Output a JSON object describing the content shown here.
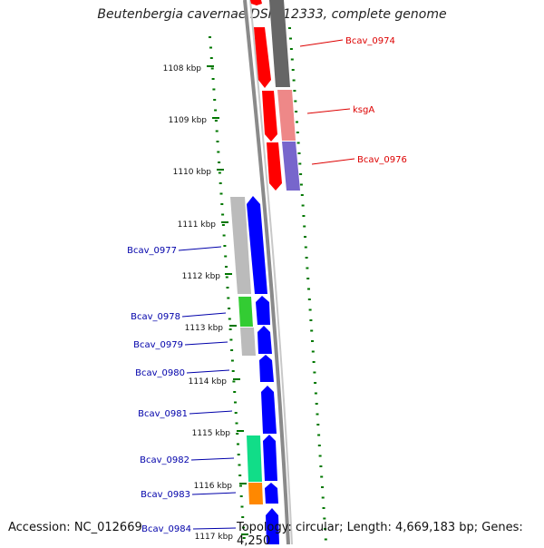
{
  "title": "Beutenbergia cavernae DSM 12333, complete genome",
  "footer": {
    "accession": "Accession: NC_012669",
    "topology": "Topology: circular; Length: 4,669,183 bp; Genes: 4,250"
  },
  "ruler": [
    "1108 kbp",
    "1109 kbp",
    "1110 kbp",
    "1111 kbp",
    "1112 kbp",
    "1113 kbp",
    "1114 kbp",
    "1115 kbp",
    "1116 kbp",
    "1117 kbp"
  ],
  "right_labels": [
    "Bcav_0974",
    "ksgA",
    "Bcav_0976"
  ],
  "left_labels": [
    "Bcav_0977",
    "Bcav_0978",
    "Bcav_0979",
    "Bcav_0980",
    "Bcav_0981",
    "Bcav_0982",
    "Bcav_0983",
    "Bcav_0984"
  ],
  "colors": {
    "right_label": "#dd0000",
    "left_label": "#0000aa",
    "tick": "#007700",
    "cds_fwd": "#ff0000",
    "cds_rev": "#0000ff",
    "backbone": "#8a8a8a"
  }
}
